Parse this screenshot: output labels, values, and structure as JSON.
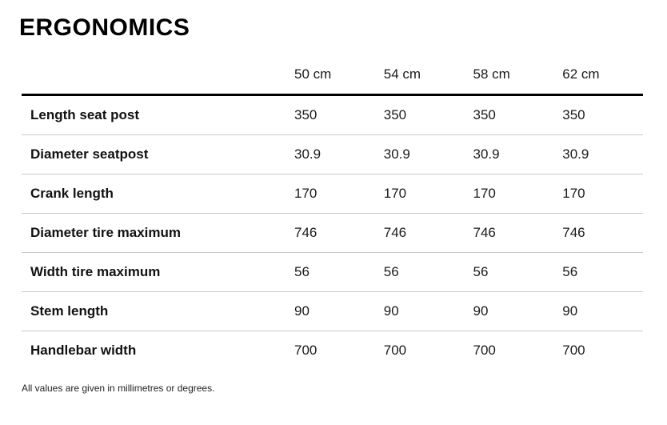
{
  "page": {
    "title": "ERGONOMICS",
    "footnote": "All values are given in millimetres or degrees."
  },
  "table": {
    "columns": [
      "50 cm",
      "54 cm",
      "58 cm",
      "62 cm"
    ],
    "rows": [
      {
        "label": "Length seat post",
        "values": [
          "350",
          "350",
          "350",
          "350"
        ]
      },
      {
        "label": "Diameter seatpost",
        "values": [
          "30.9",
          "30.9",
          "30.9",
          "30.9"
        ]
      },
      {
        "label": "Crank length",
        "values": [
          "170",
          "170",
          "170",
          "170"
        ]
      },
      {
        "label": "Diameter tire maximum",
        "values": [
          "746",
          "746",
          "746",
          "746"
        ]
      },
      {
        "label": "Width tire maximum",
        "values": [
          "56",
          "56",
          "56",
          "56"
        ]
      },
      {
        "label": "Stem length",
        "values": [
          "90",
          "90",
          "90",
          "90"
        ]
      },
      {
        "label": "Handlebar width",
        "values": [
          "700",
          "700",
          "700",
          "700"
        ]
      }
    ],
    "colors": {
      "header_rule": "#000000",
      "row_divider": "#c9c9c9",
      "text": "#1a1a1a"
    }
  }
}
